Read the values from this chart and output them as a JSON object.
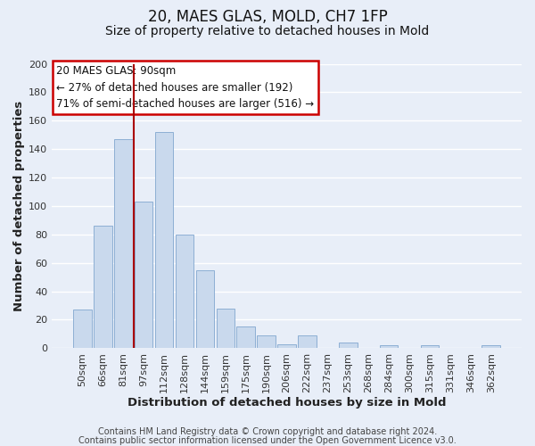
{
  "title": "20, MAES GLAS, MOLD, CH7 1FP",
  "subtitle": "Size of property relative to detached houses in Mold",
  "xlabel": "Distribution of detached houses by size in Mold",
  "ylabel": "Number of detached properties",
  "bar_labels": [
    "50sqm",
    "66sqm",
    "81sqm",
    "97sqm",
    "112sqm",
    "128sqm",
    "144sqm",
    "159sqm",
    "175sqm",
    "190sqm",
    "206sqm",
    "222sqm",
    "237sqm",
    "253sqm",
    "268sqm",
    "284sqm",
    "300sqm",
    "315sqm",
    "331sqm",
    "346sqm",
    "362sqm"
  ],
  "bar_values": [
    27,
    86,
    147,
    103,
    152,
    80,
    55,
    28,
    15,
    9,
    3,
    9,
    0,
    4,
    0,
    2,
    0,
    2,
    0,
    0,
    2
  ],
  "bar_color": "#c9d9ed",
  "bar_edge_color": "#8dafd4",
  "ylim": [
    0,
    200
  ],
  "yticks": [
    0,
    20,
    40,
    60,
    80,
    100,
    120,
    140,
    160,
    180,
    200
  ],
  "vline_color": "#aa0000",
  "annotation_title": "20 MAES GLAS: 90sqm",
  "annotation_line1": "← 27% of detached houses are smaller (192)",
  "annotation_line2": "71% of semi-detached houses are larger (516) →",
  "annotation_box_color": "#ffffff",
  "annotation_box_edge": "#cc0000",
  "footer_line1": "Contains HM Land Registry data © Crown copyright and database right 2024.",
  "footer_line2": "Contains public sector information licensed under the Open Government Licence v3.0.",
  "background_color": "#e8eef8",
  "plot_background": "#e8eef8",
  "grid_color": "#ffffff",
  "title_fontsize": 12,
  "subtitle_fontsize": 10,
  "axis_label_fontsize": 9.5,
  "tick_fontsize": 8,
  "annotation_fontsize": 8.5,
  "footer_fontsize": 7
}
